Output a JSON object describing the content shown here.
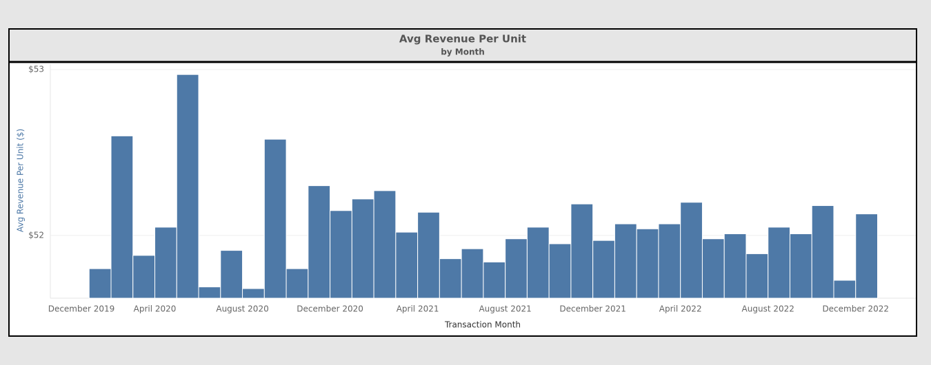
{
  "chart_data": {
    "type": "bar",
    "title": "Avg Revenue Per Unit",
    "subtitle": "by Month",
    "x_label": "Transaction Month",
    "y_label": "Avg Revenue Per Unit ($)",
    "color": "#4e79a7",
    "grid": true,
    "categories": [
      "December 2019",
      null,
      null,
      null,
      "April 2020",
      null,
      null,
      null,
      "August 2020",
      null,
      null,
      null,
      "December 2020",
      null,
      null,
      null,
      "April 2021",
      null,
      null,
      null,
      "August 2021",
      null,
      null,
      null,
      "December 2021",
      null,
      null,
      null,
      "April 2022",
      null,
      null,
      null,
      "August 2022",
      null,
      null,
      null,
      "December 2022"
    ],
    "values": [
      null,
      51.8,
      52.6,
      51.88,
      52.05,
      52.97,
      51.69,
      51.91,
      51.68,
      52.58,
      51.8,
      52.3,
      52.15,
      52.22,
      52.27,
      52.02,
      52.14,
      51.86,
      51.92,
      51.84,
      51.98,
      52.05,
      51.95,
      52.19,
      51.97,
      52.07,
      52.04,
      52.07,
      52.2,
      51.98,
      52.01,
      51.89,
      52.05,
      52.01,
      52.18,
      51.73,
      52.13
    ],
    "ylim": [
      51.622,
      53.033
    ],
    "yticks": [
      {
        "value": 52,
        "label": "$52"
      },
      {
        "value": 53,
        "label": "$53"
      }
    ]
  }
}
